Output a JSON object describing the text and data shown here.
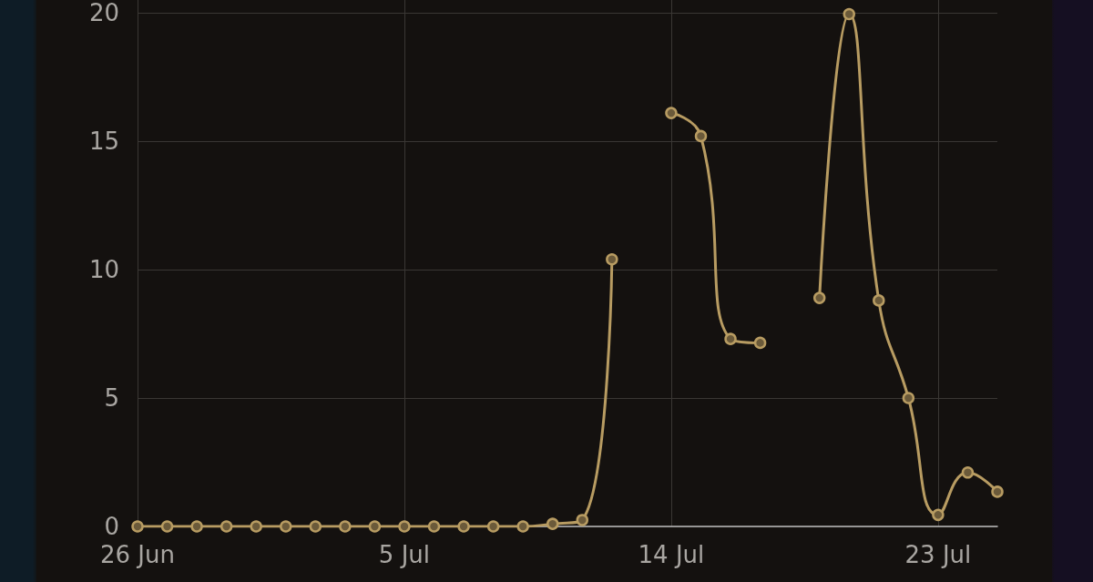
{
  "chart_data": {
    "type": "line",
    "x": [
      "--06-26",
      "--06-27",
      "--06-28",
      "--06-29",
      "--06-30",
      "--07-01",
      "--07-02",
      "--07-03",
      "--07-04",
      "--07-05",
      "--07-06",
      "--07-07",
      "--07-08",
      "--07-09",
      "--07-10",
      "--07-11",
      "--07-12",
      "--07-13",
      "--07-14",
      "--07-15",
      "--07-16",
      "--07-17",
      "--07-18",
      "--07-19",
      "--07-20",
      "--07-21",
      "--07-22",
      "--07-23",
      "--07-24",
      "--07-25"
    ],
    "series": [
      {
        "color": "#b89c62",
        "values": [
          0,
          0,
          0,
          0,
          0,
          0,
          0,
          0,
          0,
          0,
          0,
          0,
          0,
          0,
          0.1,
          0.25,
          10.4,
          null,
          16.1,
          15.2,
          7.3,
          7.15,
          null,
          8.9,
          19.95,
          8.8,
          5.0,
          0.45,
          2.1,
          1.35
        ]
      }
    ],
    "xlim": [
      "--06-26",
      "--07-25"
    ],
    "xticks": [
      {
        "value": "--06-26",
        "label": "26 Jun"
      },
      {
        "value": "--07-05",
        "label": "5 Jul"
      },
      {
        "value": "--07-14",
        "label": "14 Jul"
      },
      {
        "value": "--07-23",
        "label": "23 Jul"
      }
    ],
    "ylim": [
      0,
      20.5
    ],
    "yticks": [
      0,
      5,
      10,
      15,
      20
    ],
    "grid": true,
    "marker": "circle",
    "line_style": "solid"
  }
}
